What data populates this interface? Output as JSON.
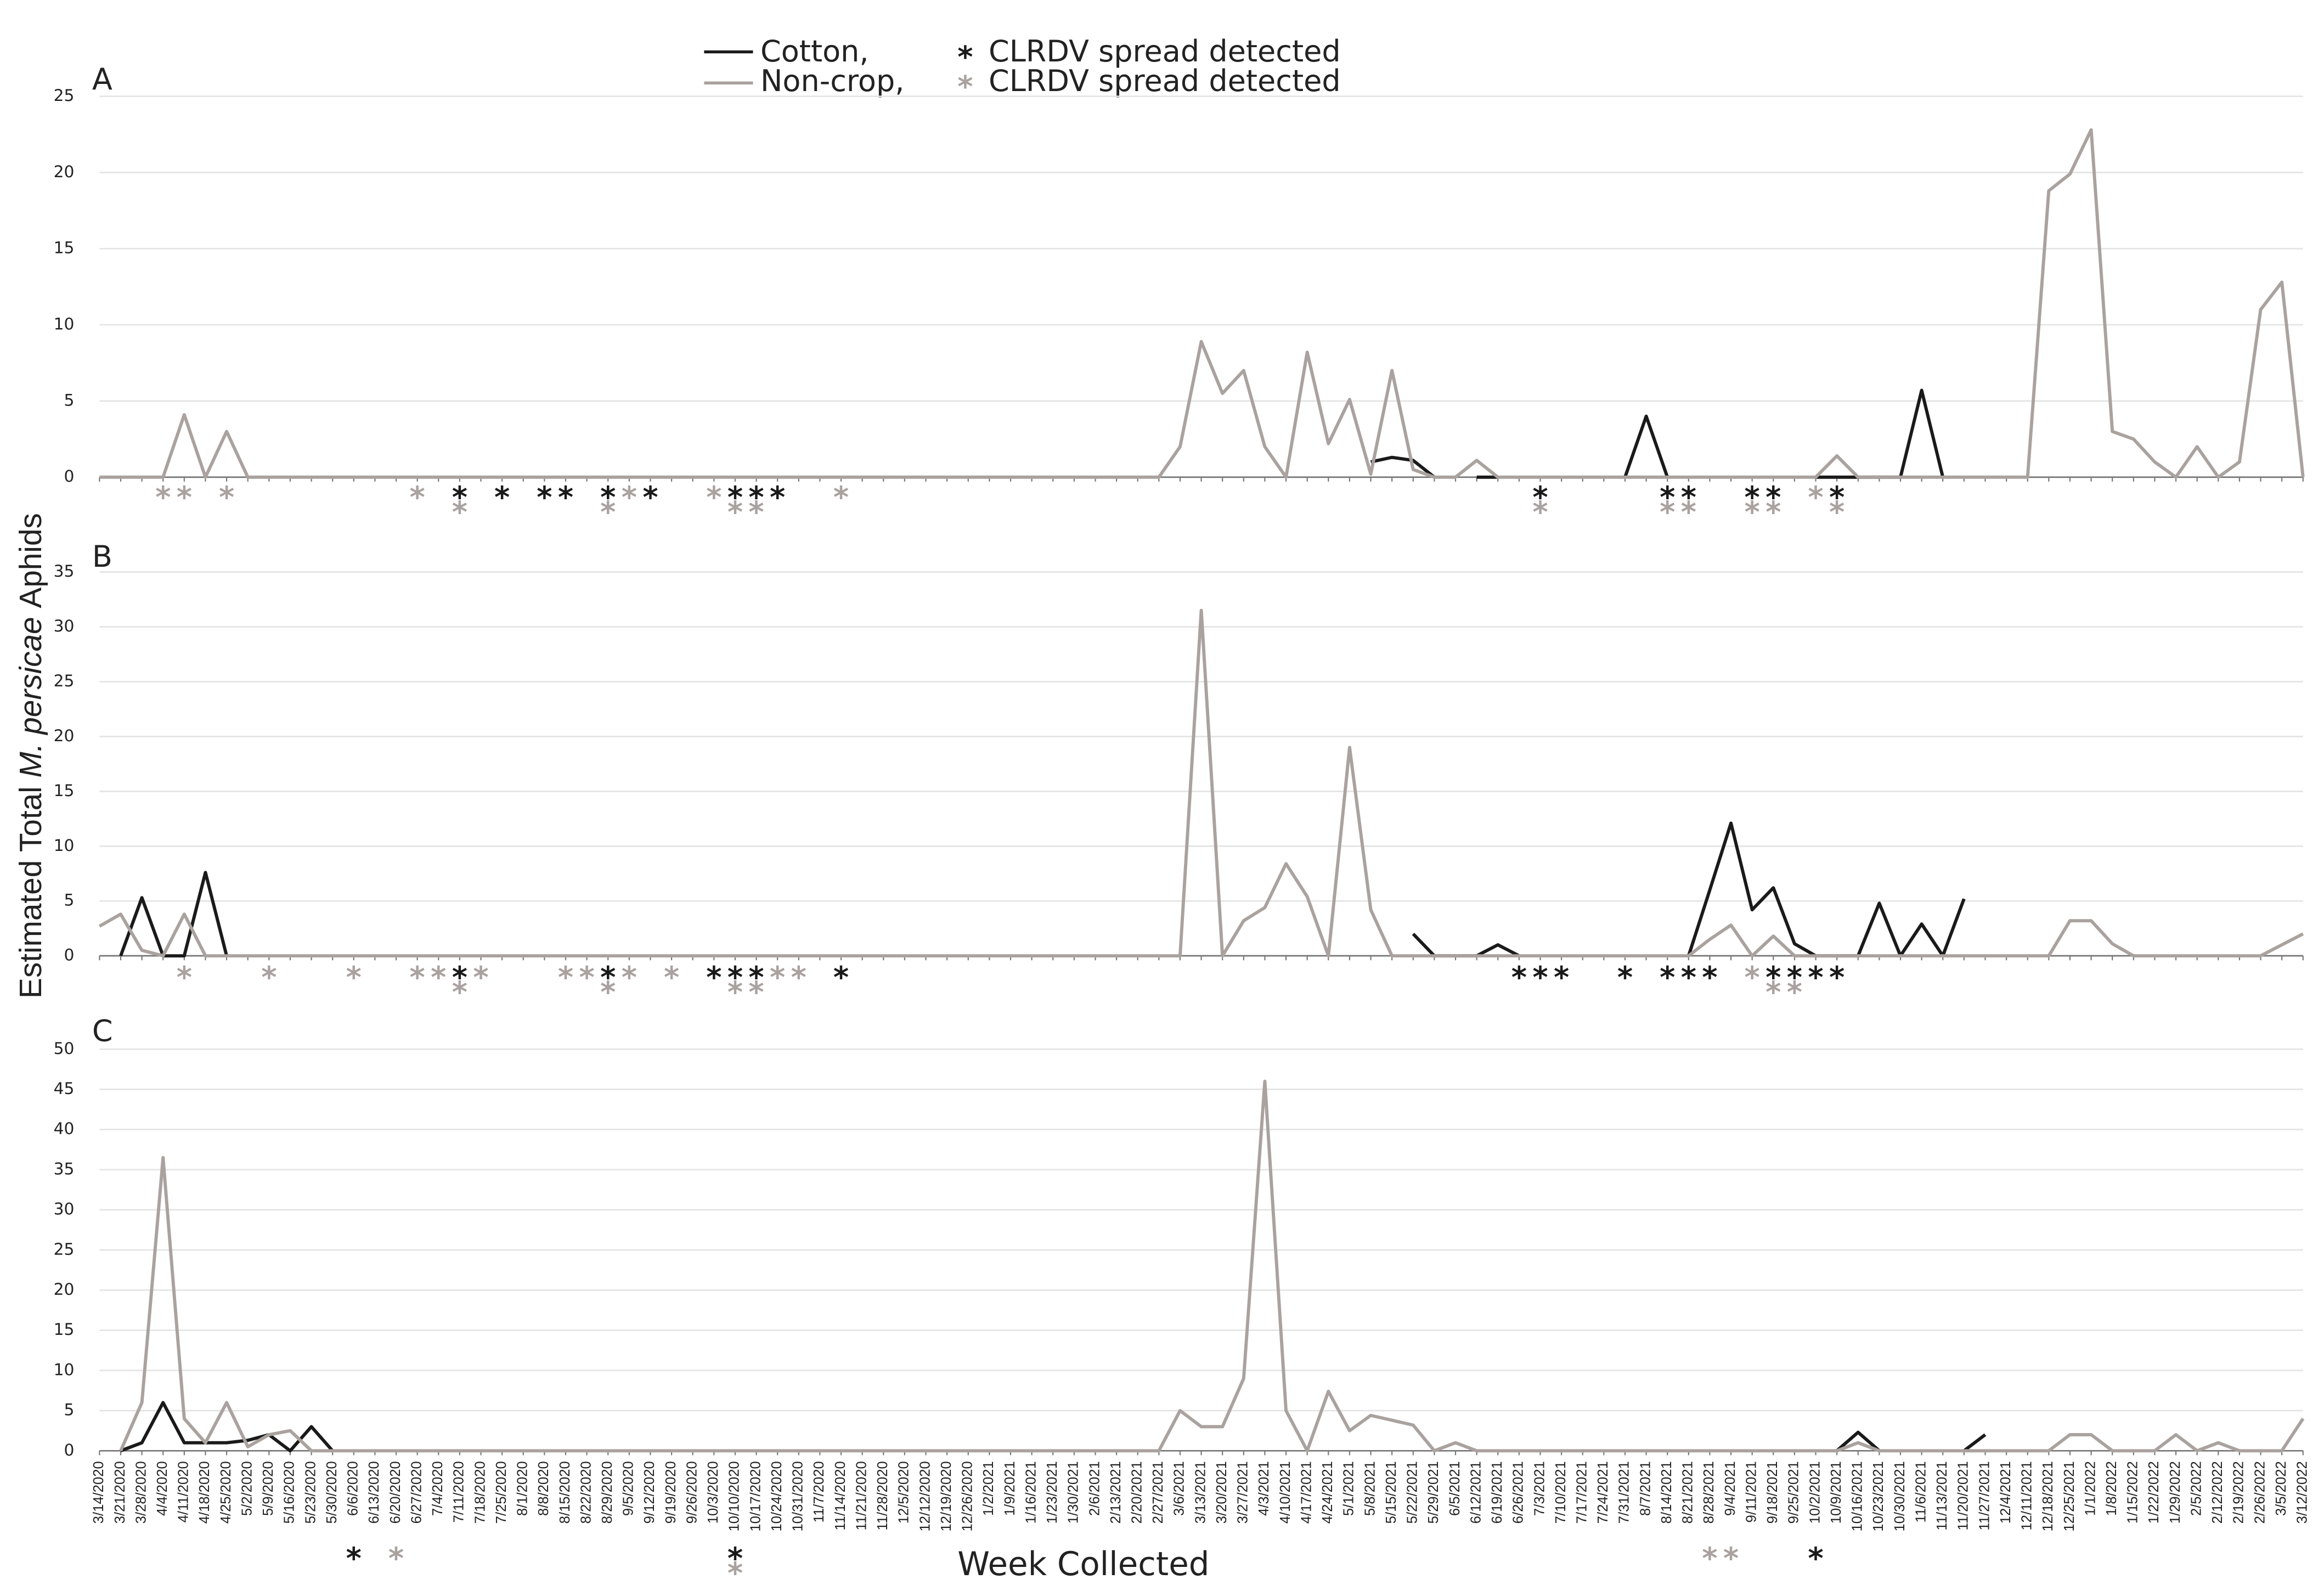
{
  "chart_data": {
    "type": "line",
    "ylabel": [
      "Estimated Total",
      "M. persicae",
      "Aphids"
    ],
    "xlabel": "Week Collected",
    "spread_symbol": "*",
    "spread_label": "CLRDV spread detected",
    "grid": true,
    "series": [
      {
        "name": "Cotton,",
        "color": "#1a1a1a"
      },
      {
        "name": "Non-crop,",
        "color": "#aaa29f"
      }
    ],
    "categories": [
      "3/14/2020",
      "3/21/2020",
      "3/28/2020",
      "4/4/2020",
      "4/11/2020",
      "4/18/2020",
      "4/25/2020",
      "5/2/2020",
      "5/9/2020",
      "5/16/2020",
      "5/23/2020",
      "5/30/2020",
      "6/6/2020",
      "6/13/2020",
      "6/20/2020",
      "6/27/2020",
      "7/4/2020",
      "7/11/2020",
      "7/18/2020",
      "7/25/2020",
      "8/1/2020",
      "8/8/2020",
      "8/15/2020",
      "8/22/2020",
      "8/29/2020",
      "9/5/2020",
      "9/12/2020",
      "9/19/2020",
      "9/26/2020",
      "10/3/2020",
      "10/10/2020",
      "10/17/2020",
      "10/24/2020",
      "10/31/2020",
      "11/7/2020",
      "11/14/2020",
      "11/21/2020",
      "11/28/2020",
      "12/5/2020",
      "12/12/2020",
      "12/19/2020",
      "12/26/2020",
      "1/2/2021",
      "1/9/2021",
      "1/16/2021",
      "1/23/2021",
      "1/30/2021",
      "2/6/2021",
      "2/13/2021",
      "2/20/2021",
      "2/27/2021",
      "3/6/2021",
      "3/13/2021",
      "3/20/2021",
      "3/27/2021",
      "4/3/2021",
      "4/10/2021",
      "4/17/2021",
      "4/24/2021",
      "5/1/2021",
      "5/8/2021",
      "5/15/2021",
      "5/22/2021",
      "5/29/2021",
      "6/5/2021",
      "6/12/2021",
      "6/19/2021",
      "6/26/2021",
      "7/3/2021",
      "7/10/2021",
      "7/17/2021",
      "7/24/2021",
      "7/31/2021",
      "8/7/2021",
      "8/14/2021",
      "8/21/2021",
      "8/28/2021",
      "9/4/2021",
      "9/11/2021",
      "9/18/2021",
      "9/25/2021",
      "10/2/2021",
      "10/9/2021",
      "10/16/2021",
      "10/23/2021",
      "10/30/2021",
      "11/6/2021",
      "11/13/2021",
      "11/20/2021",
      "11/27/2021",
      "12/4/2021",
      "12/11/2021",
      "12/18/2021",
      "12/25/2021",
      "1/1/2022",
      "1/8/2022",
      "1/15/2022",
      "1/22/2022",
      "1/29/2022",
      "2/5/2022",
      "2/12/2022",
      "2/19/2022",
      "2/26/2022",
      "3/5/2022",
      "3/12/2022"
    ],
    "panels": [
      {
        "label": "A",
        "ylim": [
          0,
          25
        ],
        "yticks": [
          0,
          5,
          10,
          15,
          20,
          25
        ],
        "values": [
          [
            null,
            null,
            null,
            null,
            null,
            null,
            null,
            null,
            null,
            null,
            null,
            null,
            null,
            null,
            null,
            null,
            null,
            null,
            null,
            null,
            null,
            null,
            null,
            null,
            null,
            null,
            null,
            null,
            null,
            null,
            null,
            null,
            null,
            null,
            null,
            null,
            null,
            null,
            null,
            null,
            null,
            null,
            null,
            null,
            null,
            null,
            null,
            null,
            null,
            null,
            null,
            null,
            null,
            null,
            null,
            null,
            null,
            null,
            null,
            null,
            1,
            1.3,
            1.1,
            0,
            null,
            0,
            0,
            null,
            null,
            null,
            null,
            null,
            0,
            4,
            0,
            null,
            null,
            null,
            null,
            null,
            null,
            0,
            0,
            0,
            0,
            0,
            5.7,
            0,
            null,
            null,
            null,
            null,
            null,
            null,
            null,
            null,
            null,
            null,
            null,
            null,
            null,
            null,
            null,
            null,
            null
          ],
          [
            0,
            0,
            0,
            0,
            4.1,
            0,
            3,
            0,
            0,
            0,
            0,
            0,
            0,
            0,
            0,
            0,
            0,
            0,
            0,
            0,
            0,
            0,
            0,
            0,
            0,
            0,
            0,
            0,
            0,
            0,
            0,
            0,
            0,
            0,
            0,
            0,
            0,
            0,
            0,
            0,
            0,
            0,
            0,
            0,
            0,
            0,
            0,
            0,
            0,
            0,
            0,
            2,
            8.9,
            5.5,
            7,
            2,
            0,
            8.2,
            2.2,
            5.1,
            0.2,
            7,
            0.5,
            0,
            0,
            1.1,
            0,
            0,
            0,
            0,
            0,
            0,
            0,
            0,
            0,
            0,
            0,
            0,
            0,
            0,
            0,
            0,
            1.4,
            0,
            0,
            0,
            0,
            0,
            0,
            0,
            0,
            0,
            18.8,
            19.9,
            22.8,
            3,
            2.5,
            1,
            0,
            2,
            0,
            1,
            11,
            12.8,
            0
          ]
        ],
        "spread": [
          [
            "7/11/2020",
            "7/25/2020",
            "8/8/2020",
            "8/15/2020",
            "8/29/2020",
            "9/12/2020",
            "10/10/2020",
            "10/17/2020",
            "10/24/2020",
            "7/3/2021",
            "8/14/2021",
            "8/21/2021",
            "9/11/2021",
            "9/18/2021",
            "10/9/2021"
          ],
          [
            "4/4/2020",
            "4/11/2020",
            "4/25/2020",
            "6/27/2020",
            "7/11/2020",
            "8/29/2020",
            "9/5/2020",
            "10/3/2020",
            "10/10/2020",
            "10/17/2020",
            "11/14/2020",
            "7/3/2021",
            "8/14/2021",
            "8/21/2021",
            "9/11/2021",
            "9/18/2021",
            "10/2/2021",
            "10/9/2021"
          ]
        ]
      },
      {
        "label": "B",
        "ylim": [
          0,
          35
        ],
        "yticks": [
          0,
          5,
          10,
          15,
          20,
          25,
          30,
          35
        ],
        "values": [
          [
            null,
            0,
            5.3,
            0,
            0,
            7.6,
            0,
            null,
            null,
            null,
            null,
            null,
            null,
            null,
            null,
            null,
            null,
            null,
            null,
            null,
            null,
            null,
            null,
            null,
            null,
            null,
            null,
            null,
            null,
            null,
            null,
            null,
            null,
            null,
            null,
            null,
            null,
            null,
            null,
            null,
            null,
            null,
            null,
            null,
            null,
            null,
            null,
            null,
            null,
            null,
            null,
            null,
            null,
            null,
            null,
            null,
            null,
            null,
            null,
            null,
            null,
            null,
            2,
            0,
            0,
            0,
            1,
            0,
            null,
            null,
            null,
            null,
            null,
            null,
            null,
            0,
            6,
            12.1,
            4.2,
            6.2,
            1.1,
            0,
            0,
            0,
            4.8,
            0,
            2.9,
            0,
            5.2,
            null,
            null,
            null,
            null,
            null,
            null,
            null,
            null,
            null,
            null,
            null,
            null,
            null,
            null,
            null,
            null
          ],
          [
            2.7,
            3.8,
            0.5,
            0,
            3.8,
            0,
            0,
            0,
            0,
            0,
            0,
            0,
            0,
            0,
            0,
            0,
            0,
            0,
            0,
            0,
            0,
            0,
            0,
            0,
            0,
            0,
            0,
            0,
            0,
            0,
            0,
            0,
            0,
            0,
            0,
            0,
            0,
            0,
            0,
            0,
            0,
            0,
            0,
            0,
            0,
            0,
            0,
            0,
            0,
            0,
            0,
            0,
            31.5,
            0,
            3.2,
            4.4,
            8.4,
            5.4,
            0,
            19,
            4.2,
            0,
            0,
            0,
            0,
            0,
            0,
            0,
            0,
            0,
            0,
            0,
            0,
            0,
            0,
            0,
            1.5,
            2.8,
            0,
            1.8,
            0,
            0,
            0,
            0,
            0,
            0,
            0,
            0,
            0,
            0,
            0,
            0,
            0,
            3.2,
            3.2,
            1.1,
            0,
            0,
            0,
            0,
            0,
            0,
            0,
            1,
            2
          ]
        ],
        "spread": [
          [
            "7/11/2020",
            "8/29/2020",
            "10/3/2020",
            "10/10/2020",
            "10/17/2020",
            "11/14/2020",
            "6/26/2021",
            "7/3/2021",
            "7/10/2021",
            "7/31/2021",
            "8/14/2021",
            "8/21/2021",
            "8/28/2021",
            "9/18/2021",
            "9/25/2021",
            "10/2/2021",
            "10/9/2021"
          ],
          [
            "4/11/2020",
            "5/9/2020",
            "6/6/2020",
            "6/27/2020",
            "7/4/2020",
            "7/11/2020",
            "7/18/2020",
            "8/15/2020",
            "8/22/2020",
            "8/29/2020",
            "9/5/2020",
            "9/19/2020",
            "10/10/2020",
            "10/17/2020",
            "10/24/2020",
            "10/31/2020",
            "9/11/2021",
            "9/18/2021",
            "9/25/2021"
          ]
        ]
      },
      {
        "label": "C",
        "ylim": [
          0,
          50
        ],
        "yticks": [
          0,
          5,
          10,
          15,
          20,
          25,
          30,
          35,
          40,
          45,
          50
        ],
        "values": [
          [
            null,
            0,
            1,
            6,
            1,
            1,
            1,
            1.3,
            2,
            0,
            3,
            0,
            null,
            null,
            null,
            null,
            null,
            null,
            null,
            null,
            null,
            null,
            null,
            null,
            null,
            null,
            null,
            null,
            null,
            null,
            null,
            null,
            null,
            null,
            null,
            null,
            null,
            null,
            null,
            null,
            null,
            null,
            null,
            null,
            null,
            null,
            null,
            null,
            null,
            null,
            null,
            null,
            null,
            null,
            null,
            null,
            null,
            null,
            null,
            null,
            null,
            null,
            null,
            null,
            null,
            null,
            null,
            null,
            null,
            null,
            null,
            null,
            null,
            null,
            null,
            null,
            null,
            null,
            null,
            null,
            null,
            null,
            0,
            2.3,
            0,
            null,
            null,
            null,
            0,
            2,
            null,
            null,
            null,
            null,
            null,
            null,
            null,
            null,
            null,
            null,
            null,
            null,
            null,
            null,
            null
          ],
          [
            null,
            0,
            6,
            36.5,
            4,
            1,
            6,
            0.5,
            2,
            2.5,
            0,
            0,
            0,
            0,
            0,
            0,
            0,
            0,
            0,
            0,
            0,
            0,
            0,
            0,
            0,
            0,
            0,
            0,
            0,
            0,
            0,
            0,
            0,
            0,
            0,
            0,
            0,
            0,
            0,
            0,
            0,
            0,
            0,
            0,
            0,
            0,
            0,
            0,
            0,
            0,
            0,
            5,
            3,
            3,
            9,
            46,
            5,
            0,
            7.4,
            2.5,
            4.4,
            3.8,
            3.2,
            0,
            1,
            0,
            0,
            0,
            0,
            0,
            0,
            0,
            0,
            0,
            0,
            0,
            0,
            0,
            0,
            0,
            0,
            0,
            0,
            1,
            0,
            0,
            0,
            0,
            0,
            0,
            0,
            0,
            0,
            2,
            2,
            0,
            0,
            0,
            2,
            0,
            1,
            0,
            0,
            0,
            4
          ]
        ],
        "spread": [
          [
            "6/6/2020",
            "10/10/2020",
            "10/2/2021"
          ],
          [
            "6/20/2020",
            "10/10/2020",
            "8/28/2021",
            "9/4/2021"
          ]
        ]
      }
    ]
  }
}
